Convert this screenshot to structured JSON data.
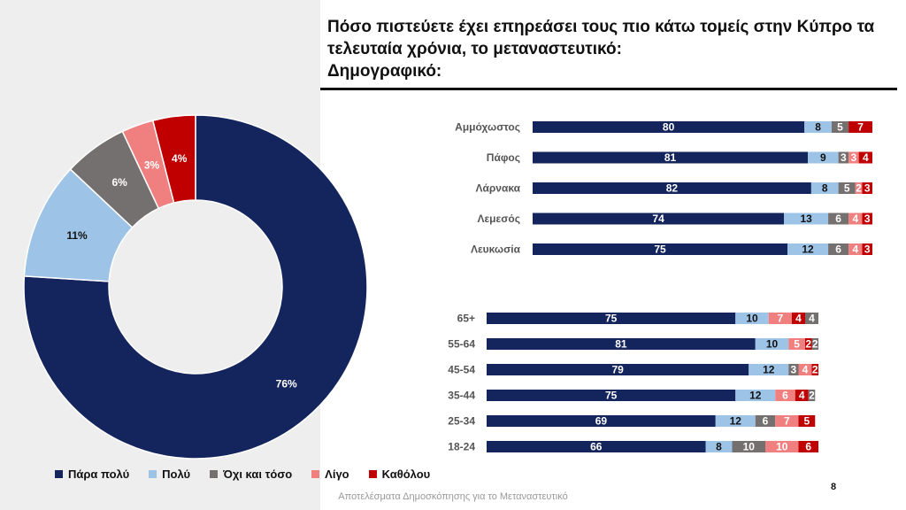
{
  "title": {
    "line1": "Πόσο πιστεύετε έχει επηρεάσει τους πιο κάτω τομείς στην Κύπρο τα",
    "line2": "τελευταία χρόνια, το μεταναστευτικό:",
    "line3": "Δημογραφικό:"
  },
  "footer": "Αποτελέσματα Δημοσκόπησης για το Μεταναστευτικό",
  "page_number": "8",
  "colors": {
    "para_poly": "#14245c",
    "poly": "#9dc3e6",
    "ochi_kai_toso": "#757070",
    "ligo": "#f08080",
    "katholou": "#c00000"
  },
  "chart_data": [
    {
      "type": "pie",
      "variant": "donut",
      "categories": [
        "Πάρα πολύ",
        "Πολύ",
        "Όχι και τόσο",
        "Λίγο",
        "Καθόλου"
      ],
      "values": [
        76,
        11,
        6,
        3,
        4
      ],
      "labels": [
        "76%",
        "11%",
        "6%",
        "3%",
        "4%"
      ],
      "legend_position": "bottom"
    },
    {
      "type": "bar",
      "orientation": "horizontal",
      "stacked": true,
      "categories": [
        "Αμμόχωστος",
        "Πάφος",
        "Λάρνακα",
        "Λεμεσός",
        "Λευκωσία"
      ],
      "series": [
        {
          "name": "Πάρα πολύ",
          "values": [
            80,
            81,
            82,
            74,
            75
          ]
        },
        {
          "name": "Πολύ",
          "values": [
            8,
            9,
            8,
            13,
            12
          ]
        },
        {
          "name": "Όχι και τόσο",
          "values": [
            5,
            3,
            5,
            6,
            6
          ]
        },
        {
          "name": "Λίγο",
          "values": [
            0,
            3,
            2,
            4,
            4
          ]
        },
        {
          "name": "Καθόλου",
          "values": [
            7,
            4,
            3,
            3,
            3
          ]
        }
      ]
    },
    {
      "type": "bar",
      "orientation": "horizontal",
      "stacked": true,
      "categories": [
        "65+",
        "55-64",
        "45-54",
        "35-44",
        "25-34",
        "18-24"
      ],
      "series": [
        {
          "name": "Πάρα πολύ",
          "values": [
            75,
            81,
            79,
            75,
            69,
            66
          ]
        },
        {
          "name": "Πολύ",
          "values": [
            10,
            10,
            12,
            12,
            12,
            8
          ]
        },
        {
          "name": "Όχι και τόσο",
          "values": [
            0,
            0,
            3,
            0,
            6,
            10
          ]
        },
        {
          "name": "Λίγο",
          "values": [
            7,
            5,
            4,
            6,
            7,
            10
          ]
        },
        {
          "name": "Καθόλου",
          "values": [
            4,
            2,
            2,
            4,
            5,
            6
          ]
        },
        {
          "name": "Όχι και τόσο",
          "values": [
            4,
            2,
            0,
            2,
            0,
            0
          ]
        }
      ]
    }
  ]
}
